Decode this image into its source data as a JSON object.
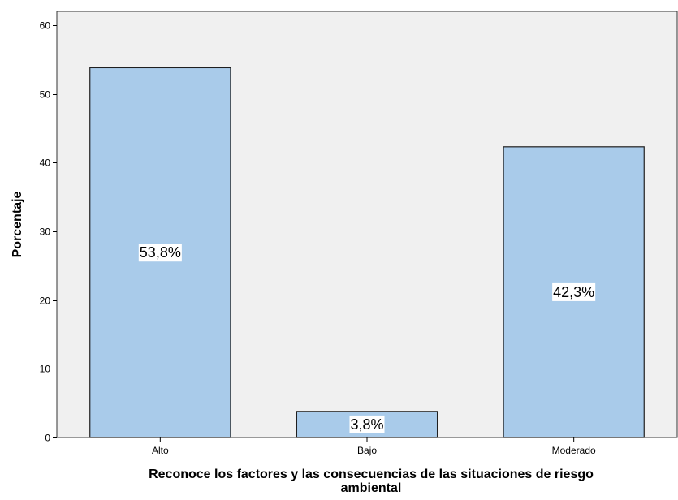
{
  "chart_data": {
    "type": "bar",
    "categories": [
      "Alto",
      "Bajo",
      "Moderado"
    ],
    "values": [
      53.8,
      3.8,
      42.3
    ],
    "data_labels": [
      "53,8%",
      "3,8%",
      "42,3%"
    ],
    "title": "",
    "xlabel_lines": [
      "Reconoce los factores y las consecuencias de las situaciones de riesgo",
      "ambiental"
    ],
    "ylabel": "Porcentaje",
    "ylim": [
      0,
      62
    ],
    "yticks": [
      0,
      10,
      20,
      30,
      40,
      50,
      60
    ],
    "grid": false,
    "legend": "none",
    "colors": {
      "bar_fill": "#a9cbea",
      "bar_stroke": "#1f1f1f",
      "plot_background": "#f0f0f0",
      "label_background": "#ffffff"
    }
  }
}
